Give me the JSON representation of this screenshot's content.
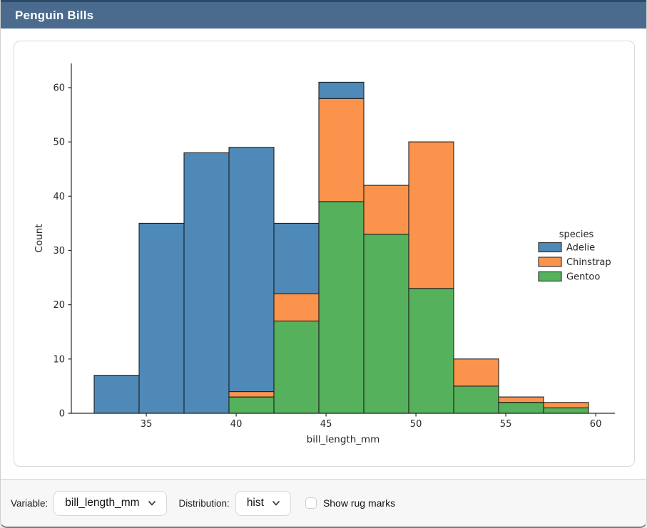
{
  "header": {
    "title": "Penguin Bills"
  },
  "chart_data": {
    "type": "bar",
    "subtype": "stacked-histogram",
    "xlabel": "bill_length_mm",
    "ylabel": "Count",
    "legend_title": "species",
    "bin_start": 32.1,
    "bin_width": 2.5,
    "n_bins": 11,
    "bin_edges": [
      32.1,
      34.6,
      37.1,
      39.6,
      42.1,
      44.6,
      47.1,
      49.6,
      52.1,
      54.6,
      57.1,
      59.6
    ],
    "xticks": [
      35,
      40,
      45,
      50,
      55,
      60
    ],
    "yticks": [
      0,
      10,
      20,
      30,
      40,
      50,
      60
    ],
    "xlim": [
      30.8,
      61.1
    ],
    "ylim": [
      0,
      64.5
    ],
    "grid": false,
    "legend_position": "right",
    "series": [
      {
        "name": "Adelie",
        "color": "#4e89b7",
        "values": [
          7,
          35,
          48,
          45,
          13,
          3,
          0,
          0,
          0,
          0,
          0
        ]
      },
      {
        "name": "Chinstrap",
        "color": "#fb934c",
        "values": [
          0,
          0,
          0,
          1,
          5,
          19,
          9,
          27,
          5,
          1,
          1
        ]
      },
      {
        "name": "Gentoo",
        "color": "#55b15c",
        "values": [
          0,
          0,
          0,
          3,
          17,
          39,
          33,
          23,
          5,
          2,
          1
        ]
      }
    ],
    "bin_totals": [
      7,
      35,
      48,
      49,
      35,
      61,
      42,
      50,
      10,
      3,
      2
    ]
  },
  "controls": {
    "variable_label": "Variable:",
    "variable_value": "bill_length_mm",
    "distribution_label": "Distribution:",
    "distribution_value": "hist",
    "rug_label": "Show rug marks",
    "rug_checked": false
  },
  "colors": {
    "titlebar_bg": "#4a6b8e",
    "titlebar_border": "#2c4a68",
    "panel_border": "#d9d9d9",
    "bar_edge": "#1f1f1f",
    "axis_text": "#262626"
  }
}
